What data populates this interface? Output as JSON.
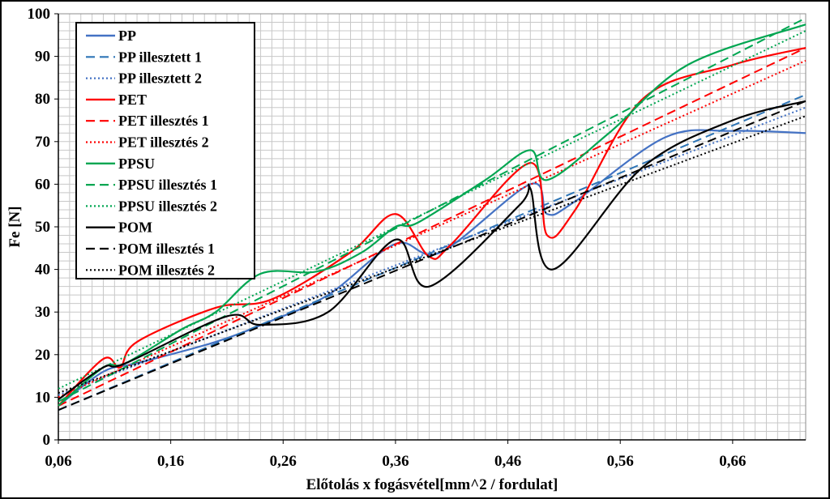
{
  "chart_data": {
    "type": "line",
    "title": "",
    "xlabel": "Előtolás x fogásvétel[mm^2 / fordulat]",
    "ylabel": "Fe [N]",
    "xlim": [
      0.06,
      0.725
    ],
    "ylim": [
      0,
      100
    ],
    "x_ticks": [
      0.06,
      0.16,
      0.26,
      0.36,
      0.46,
      0.56,
      0.66
    ],
    "x_tick_labels": [
      "0,06",
      "0,16",
      "0,26",
      "0,36",
      "0,46",
      "0,56",
      "0,66"
    ],
    "y_ticks": [
      0,
      10,
      20,
      30,
      40,
      50,
      60,
      70,
      80,
      90,
      100
    ],
    "y_tick_labels": [
      "0",
      "10",
      "20",
      "30",
      "40",
      "50",
      "60",
      "70",
      "80",
      "90",
      "100"
    ],
    "grid": true,
    "legend_position": "top-left",
    "series": [
      {
        "name": "PP",
        "color": "#4472C4",
        "dash": "solid",
        "x": [
          0.06,
          0.1,
          0.13,
          0.2,
          0.25,
          0.3,
          0.36,
          0.4,
          0.48,
          0.495,
          0.52,
          0.6,
          0.66,
          0.725
        ],
        "y": [
          8,
          16,
          18,
          23,
          28,
          34,
          46,
          44,
          60,
          53,
          56,
          71,
          72.5,
          72
        ]
      },
      {
        "name": "PP illesztett 1",
        "color": "#2E75B6",
        "dash": "dash",
        "x": [
          0.06,
          0.725
        ],
        "y": [
          7,
          81
        ]
      },
      {
        "name": "PP illesztett 2",
        "color": "#4472C4",
        "dash": "dot",
        "x": [
          0.06,
          0.725
        ],
        "y": [
          10.5,
          78
        ]
      },
      {
        "name": "PET",
        "color": "#FF0000",
        "dash": "solid",
        "x": [
          0.06,
          0.1,
          0.115,
          0.13,
          0.2,
          0.25,
          0.32,
          0.36,
          0.39,
          0.41,
          0.48,
          0.495,
          0.52,
          0.58,
          0.66,
          0.725
        ],
        "y": [
          8,
          19,
          17,
          23,
          31,
          33,
          44,
          53,
          43,
          46,
          65,
          48,
          54,
          80,
          88,
          92
        ]
      },
      {
        "name": "PET illesztés 1",
        "color": "#FF0000",
        "dash": "dash",
        "x": [
          0.06,
          0.725
        ],
        "y": [
          8,
          92
        ]
      },
      {
        "name": "PET illesztés 2",
        "color": "#FF0000",
        "dash": "dot",
        "x": [
          0.06,
          0.725
        ],
        "y": [
          10,
          89
        ]
      },
      {
        "name": "PPSU",
        "color": "#00A651",
        "dash": "solid",
        "x": [
          0.06,
          0.1,
          0.12,
          0.17,
          0.2,
          0.24,
          0.29,
          0.33,
          0.36,
          0.38,
          0.44,
          0.48,
          0.495,
          0.55,
          0.62,
          0.725
        ],
        "y": [
          8,
          17,
          18,
          26,
          30,
          39,
          39.5,
          44,
          50,
          51,
          61,
          68,
          61,
          72,
          88,
          97.5
        ]
      },
      {
        "name": "PPSU illesztés 1",
        "color": "#00A651",
        "dash": "dash",
        "x": [
          0.06,
          0.725
        ],
        "y": [
          9,
          99
        ]
      },
      {
        "name": "PPSU illesztés 2",
        "color": "#00A651",
        "dash": "dot",
        "x": [
          0.06,
          0.725
        ],
        "y": [
          12,
          96
        ]
      },
      {
        "name": "POM",
        "color": "#000000",
        "dash": "solid",
        "x": [
          0.06,
          0.1,
          0.12,
          0.21,
          0.24,
          0.3,
          0.36,
          0.39,
          0.47,
          0.48,
          0.5,
          0.58,
          0.66,
          0.725
        ],
        "y": [
          9.5,
          17,
          18,
          29,
          27,
          30,
          47,
          36,
          55,
          59,
          40,
          64,
          75,
          79.5
        ]
      },
      {
        "name": "POM illesztés 1",
        "color": "#000000",
        "dash": "dash",
        "x": [
          0.06,
          0.725
        ],
        "y": [
          7,
          79.5
        ]
      },
      {
        "name": "POM illesztés 2",
        "color": "#000000",
        "dash": "dot",
        "x": [
          0.06,
          0.725
        ],
        "y": [
          11,
          76
        ]
      }
    ]
  }
}
